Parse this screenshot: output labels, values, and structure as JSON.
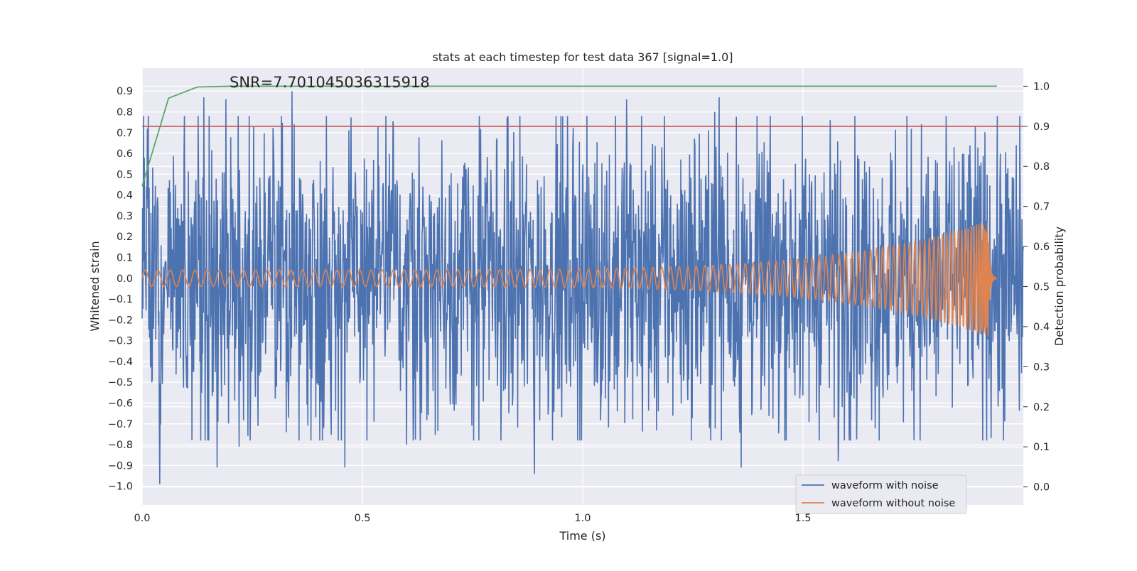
{
  "chart_data": {
    "type": "line",
    "title": "stats at each timestep for test data 367 [signal=1.0]",
    "xlabel": "Time (s)",
    "ylabel": "Whitened strain",
    "ylabel_right": "Detection probability",
    "xlim": [
      0.0,
      2.0
    ],
    "ylim": [
      -1.09,
      1.01
    ],
    "ylim_right": [
      -0.045,
      1.045
    ],
    "x_ticks": [
      0.0,
      0.5,
      1.0,
      1.5
    ],
    "x_tick_labels": [
      "0.0",
      "0.5",
      "1.0",
      "1.5"
    ],
    "y_ticks": [
      -1.0,
      -0.9,
      -0.8,
      -0.7,
      -0.6,
      -0.5,
      -0.4,
      -0.3,
      -0.2,
      -0.1,
      0.0,
      0.1,
      0.2,
      0.3,
      0.4,
      0.5,
      0.6,
      0.7,
      0.8,
      0.9
    ],
    "y_tick_labels": [
      "−1.0",
      "−0.9",
      "−0.8",
      "−0.7",
      "−0.6",
      "−0.5",
      "−0.4",
      "−0.3",
      "−0.2",
      "−0.1",
      "0.0",
      "0.1",
      "0.2",
      "0.3",
      "0.4",
      "0.5",
      "0.6",
      "0.7",
      "0.8",
      "0.9"
    ],
    "y_right_ticks": [
      0.0,
      0.1,
      0.2,
      0.3,
      0.4,
      0.5,
      0.6,
      0.7,
      0.8,
      0.9,
      1.0
    ],
    "y_right_tick_labels": [
      "0.0",
      "0.1",
      "0.2",
      "0.3",
      "0.4",
      "0.5",
      "0.6",
      "0.7",
      "0.8",
      "0.9",
      "1.0"
    ],
    "grid": true,
    "legend_position": "lower-right",
    "annotation": "SNR=7.701045036315918",
    "series": [
      {
        "name": "waveform with noise",
        "color": "#4c72b0",
        "axis": "left",
        "description_kind": "noisy strain",
        "x_range": [
          0.0,
          2.0
        ],
        "amplitude_range": [
          -1.0,
          0.9
        ],
        "peaks": [
          {
            "x": 0.34,
            "y": 0.9
          },
          {
            "x": 0.04,
            "y": -0.99
          },
          {
            "x": 0.89,
            "y": -0.94
          },
          {
            "x": 0.46,
            "y": -0.91
          },
          {
            "x": 0.17,
            "y": -0.91
          },
          {
            "x": 1.31,
            "y": 0.87
          },
          {
            "x": 0.14,
            "y": 0.87
          },
          {
            "x": 0.19,
            "y": 0.86
          },
          {
            "x": 1.1,
            "y": 0.86
          },
          {
            "x": 1.36,
            "y": -0.91
          },
          {
            "x": 1.58,
            "y": -0.88
          },
          {
            "x": 1.3,
            "y": 0.8
          },
          {
            "x": 0.57,
            "y": 0.73
          },
          {
            "x": 0.6,
            "y": -0.8
          },
          {
            "x": 0.22,
            "y": -0.81
          }
        ]
      },
      {
        "name": "waveform without noise",
        "color": "#dd8452",
        "axis": "left",
        "x_range": [
          0.0,
          1.94
        ],
        "start_amplitude": 0.04,
        "end_amplitude": 0.28,
        "start_frequency_hz": 35,
        "merger_time": 1.92
      },
      {
        "name": "detection probability",
        "color": "#55a868",
        "axis": "right",
        "x": [
          0.0,
          0.06,
          0.125,
          0.2,
          1.94
        ],
        "values": [
          0.75,
          0.97,
          0.998,
          1.0,
          1.0
        ]
      },
      {
        "name": "threshold",
        "color": "#c44e52",
        "axis": "right",
        "values": [
          0.9
        ]
      }
    ]
  }
}
